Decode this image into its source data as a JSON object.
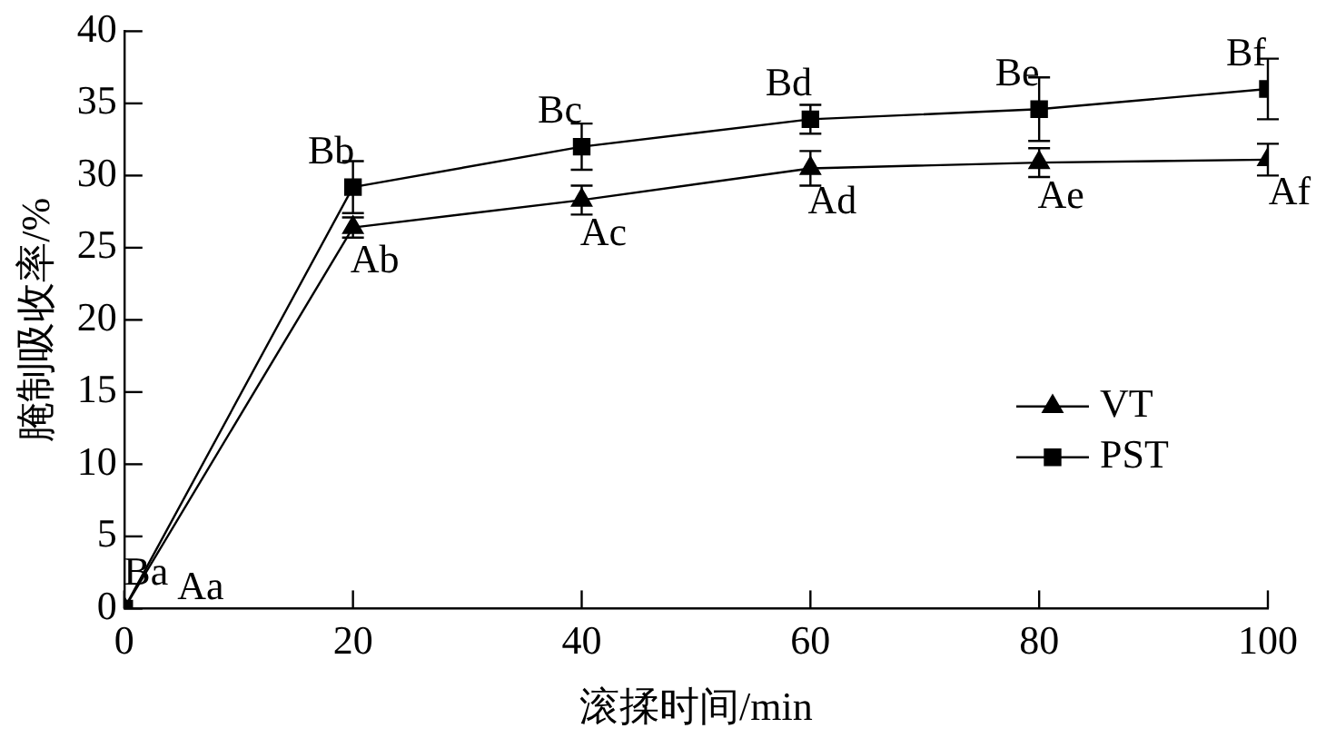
{
  "chart_data": {
    "type": "line",
    "xlabel": "滚揉时间/min",
    "ylabel": "腌制吸收率/%",
    "x": [
      0,
      20,
      40,
      60,
      80,
      100
    ],
    "series": [
      {
        "name": "VT",
        "color": "#000000",
        "marker": "triangle",
        "values": [
          0,
          26.4,
          28.3,
          30.5,
          30.9,
          31.1
        ],
        "errors": [
          null,
          0.7,
          1.0,
          1.2,
          1.0,
          1.1
        ]
      },
      {
        "name": "PST",
        "color": "#000000",
        "marker": "square",
        "values": [
          0,
          29.2,
          32.0,
          33.9,
          34.6,
          36.0
        ],
        "errors": [
          null,
          1.8,
          1.6,
          1.0,
          2.2,
          2.1
        ]
      }
    ],
    "xlim": [
      0,
      100
    ],
    "xticks": [
      0,
      20,
      40,
      60,
      80,
      100
    ],
    "ylim": [
      0,
      40
    ],
    "yticks": [
      0,
      5,
      10,
      15,
      20,
      25,
      30,
      35,
      40
    ],
    "grid": false,
    "legend": "right",
    "line_style": "solid",
    "annotations": [
      {
        "text": "Aa",
        "x": 0,
        "y": 0
      },
      {
        "text": "Ab",
        "x": 20,
        "y": 26.4
      },
      {
        "text": "Ac",
        "x": 40,
        "y": 28.3
      },
      {
        "text": "Ad",
        "x": 60,
        "y": 30.5
      },
      {
        "text": "Ae",
        "x": 80,
        "y": 30.9
      },
      {
        "text": "Af",
        "x": 100,
        "y": 31.1
      },
      {
        "text": "Ba",
        "x": 0,
        "y": 0
      },
      {
        "text": "Bb",
        "x": 20,
        "y": 29.2
      },
      {
        "text": "Bc",
        "x": 40,
        "y": 32.0
      },
      {
        "text": "Bd",
        "x": 60,
        "y": 33.9
      },
      {
        "text": "Be",
        "x": 80,
        "y": 34.6
      },
      {
        "text": "Bf",
        "x": 100,
        "y": 36.0
      }
    ]
  }
}
